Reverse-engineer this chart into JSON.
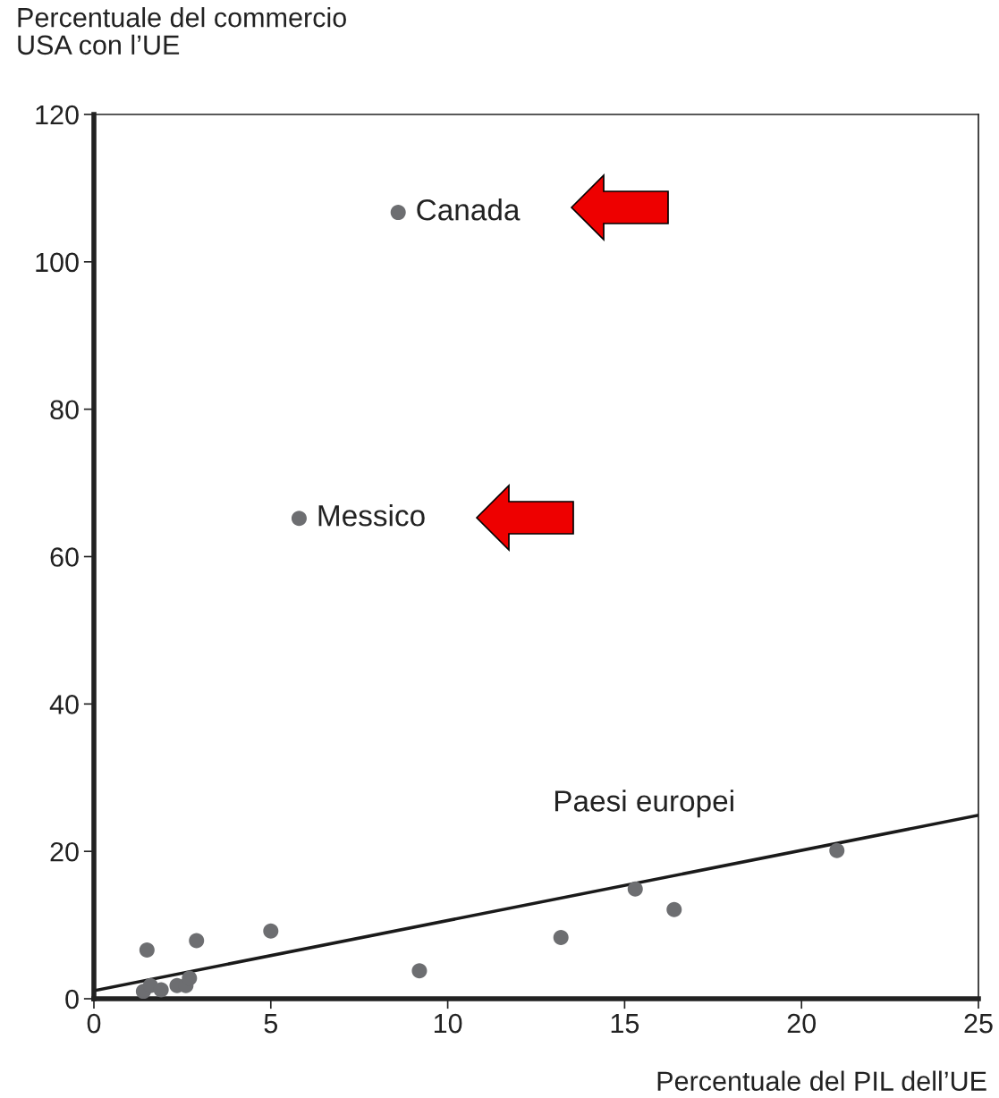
{
  "chart_data": {
    "type": "scatter",
    "ylabel": "Percentuale del commercio\nUSA con l’UE",
    "xlabel": "Percentuale del PIL dell’UE",
    "xlim": [
      0,
      25
    ],
    "xticks": [
      0,
      5,
      10,
      15,
      20,
      25
    ],
    "ylim": [
      0,
      120
    ],
    "yticks": [
      0,
      20,
      40,
      60,
      80,
      100,
      120
    ],
    "grid": false,
    "legend": false,
    "marker": "circle",
    "series": [
      {
        "color": "#6d6e71",
        "x": [
          8.6,
          5.8,
          1.5,
          2.9,
          5.0,
          9.2,
          13.2,
          15.3,
          16.4,
          21.0,
          1.4,
          1.6,
          1.9,
          2.35,
          2.6,
          2.7
        ],
        "values": [
          106.7,
          65.2,
          6.6,
          7.9,
          9.2,
          3.8,
          8.3,
          14.9,
          12.1,
          20.1,
          1.0,
          1.8,
          1.2,
          1.8,
          1.8,
          2.8
        ]
      },
      {
        "type": "line",
        "color": "#1a1a1a",
        "x": [
          0,
          25
        ],
        "values": [
          1.1,
          24.9
        ],
        "marker": "none",
        "line_style": "solid"
      }
    ],
    "annotations": [
      {
        "text": "Canada",
        "x": 8.6,
        "y": 106.7
      },
      {
        "text": "Messico",
        "x": 5.8,
        "y": 65.2
      },
      "Paesi europei"
    ]
  }
}
